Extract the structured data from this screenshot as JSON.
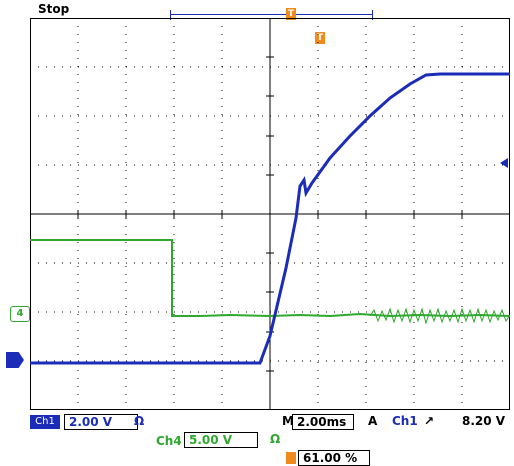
{
  "status": "Stop",
  "trigger_marker": "T",
  "trigger_delay_marker": "T",
  "ch4_marker": "4",
  "ch1": {
    "label": "Ch1",
    "scale": "2.00 V",
    "coupling": "Ω"
  },
  "ch4": {
    "label": "Ch4",
    "scale": "5.00 V",
    "coupling": "Ω"
  },
  "timebase": {
    "prefix": "M",
    "value": "2.00ms"
  },
  "trigger": {
    "mode": "A",
    "source": "Ch1",
    "slope": "↗",
    "level": "8.20 V"
  },
  "horizontal_position": "61.00 %",
  "colors": {
    "ch1": "#1a2cb8",
    "ch4": "#2ea82e",
    "accent": "#f08a1c"
  }
}
